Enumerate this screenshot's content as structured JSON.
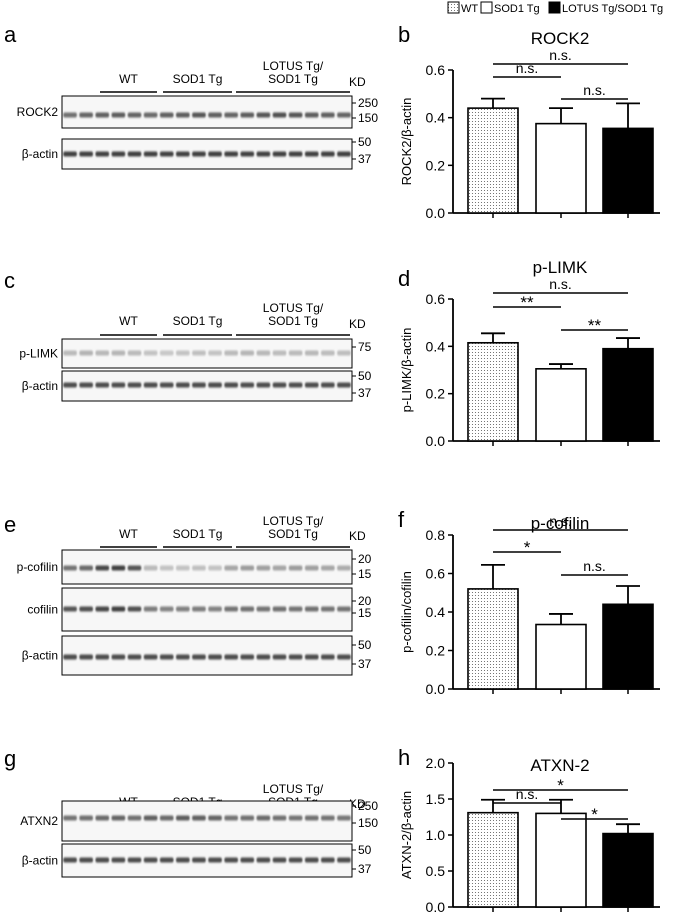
{
  "legend": {
    "items": [
      {
        "label": "WT",
        "style": "dotted"
      },
      {
        "label": "SOD1 Tg",
        "style": "white"
      },
      {
        "label": "LOTUS Tg/SOD1 Tg",
        "style": "black"
      }
    ]
  },
  "blots": [
    {
      "letter": "a",
      "groups": [
        {
          "label": "WT"
        },
        {
          "label": "SOD1 Tg"
        },
        {
          "label": "LOTUS Tg/",
          "label2": "SOD1 Tg"
        }
      ],
      "kd_label": "KD",
      "panels": [
        {
          "label": "ROCK2",
          "markers": [
            "250",
            "150"
          ],
          "intensity": [
            0.72,
            0.78,
            0.8,
            0.82,
            0.78,
            0.75,
            0.8,
            0.82,
            0.85,
            0.8,
            0.78,
            0.82,
            0.85,
            0.88,
            0.85,
            0.82,
            0.8,
            0.78
          ]
        },
        {
          "label": "β-actin",
          "markers": [
            "50",
            "37"
          ],
          "intensity": [
            0.95,
            0.95,
            0.95,
            0.95,
            0.95,
            0.95,
            0.95,
            0.95,
            0.95,
            0.95,
            0.95,
            0.95,
            0.95,
            0.95,
            0.95,
            0.95,
            0.95,
            0.95
          ]
        }
      ]
    },
    {
      "letter": "c",
      "groups": [
        {
          "label": "WT"
        },
        {
          "label": "SOD1 Tg"
        },
        {
          "label": "LOTUS Tg/",
          "label2": "SOD1 Tg"
        }
      ],
      "kd_label": "KD",
      "panels": [
        {
          "label": "p-LIMK",
          "markers": [
            "75"
          ],
          "intensity": [
            0.35,
            0.38,
            0.36,
            0.37,
            0.35,
            0.3,
            0.28,
            0.3,
            0.32,
            0.3,
            0.35,
            0.37,
            0.36,
            0.34,
            0.35,
            0.36,
            0.34,
            0.33
          ]
        },
        {
          "label": "β-actin",
          "markers": [
            "50",
            "37"
          ],
          "intensity": [
            0.9,
            0.9,
            0.9,
            0.9,
            0.9,
            0.9,
            0.9,
            0.9,
            0.9,
            0.9,
            0.9,
            0.9,
            0.9,
            0.9,
            0.9,
            0.9,
            0.9,
            0.9
          ]
        }
      ]
    },
    {
      "letter": "e",
      "groups": [
        {
          "label": "WT"
        },
        {
          "label": "SOD1 Tg"
        },
        {
          "label": "LOTUS Tg/",
          "label2": "SOD1 Tg"
        }
      ],
      "kd_label": "KD",
      "panels": [
        {
          "label": "p-cofilin",
          "markers": [
            "20",
            "15"
          ],
          "intensity": [
            0.7,
            0.75,
            0.92,
            0.95,
            0.85,
            0.35,
            0.3,
            0.3,
            0.32,
            0.3,
            0.45,
            0.5,
            0.48,
            0.45,
            0.5,
            0.48,
            0.45,
            0.42
          ]
        },
        {
          "label": "cofilin",
          "markers": [
            "20",
            "15"
          ],
          "intensity": [
            0.85,
            0.88,
            0.92,
            0.95,
            0.88,
            0.65,
            0.62,
            0.63,
            0.65,
            0.62,
            0.7,
            0.72,
            0.7,
            0.72,
            0.7,
            0.72,
            0.7,
            0.7
          ]
        },
        {
          "label": "β-actin",
          "markers": [
            "50",
            "37"
          ],
          "intensity": [
            0.9,
            0.9,
            0.9,
            0.9,
            0.9,
            0.9,
            0.9,
            0.9,
            0.9,
            0.9,
            0.9,
            0.9,
            0.9,
            0.9,
            0.9,
            0.9,
            0.9,
            0.9
          ]
        }
      ]
    },
    {
      "letter": "g",
      "groups": [
        {
          "label": "WT"
        },
        {
          "label": "SOD1 Tg"
        },
        {
          "label": "LOTUS Tg/",
          "label2": "SOD1 Tg"
        }
      ],
      "kd_label": "KD",
      "panels": [
        {
          "label": "ATXN2",
          "markers": [
            "250",
            "150"
          ],
          "intensity": [
            0.7,
            0.72,
            0.75,
            0.78,
            0.72,
            0.8,
            0.75,
            0.82,
            0.8,
            0.78,
            0.7,
            0.72,
            0.75,
            0.72,
            0.7,
            0.72,
            0.7,
            0.68
          ]
        },
        {
          "label": "β-actin",
          "markers": [
            "50",
            "37"
          ],
          "intensity": [
            0.9,
            0.9,
            0.9,
            0.9,
            0.9,
            0.9,
            0.9,
            0.9,
            0.9,
            0.9,
            0.9,
            0.9,
            0.9,
            0.9,
            0.9,
            0.9,
            0.9,
            0.9
          ]
        }
      ]
    }
  ],
  "chart_data": [
    {
      "letter": "b",
      "type": "bar",
      "title": "ROCK2",
      "ylabel": "ROCK2/β-actin",
      "categories": [
        "WT",
        "SOD1 Tg",
        "LOTUS Tg/SOD1 Tg"
      ],
      "values": [
        0.44,
        0.375,
        0.355
      ],
      "errors": [
        0.04,
        0.065,
        0.105
      ],
      "ylim": [
        0,
        0.6
      ],
      "yticks": [
        0.0,
        0.2,
        0.4,
        0.6
      ],
      "tick_decimals": 1,
      "comparisons": [
        {
          "from": 0,
          "to": 2,
          "label": "n.s."
        },
        {
          "from": 0,
          "to": 1,
          "label": "n.s."
        },
        {
          "from": 1,
          "to": 2,
          "label": "n.s."
        }
      ]
    },
    {
      "letter": "d",
      "type": "bar",
      "title": "p-LIMK",
      "ylabel": "p-LIMK/β-actin",
      "categories": [
        "WT",
        "SOD1 Tg",
        "LOTUS Tg/SOD1 Tg"
      ],
      "values": [
        0.415,
        0.305,
        0.39
      ],
      "errors": [
        0.04,
        0.02,
        0.045
      ],
      "ylim": [
        0,
        0.6
      ],
      "yticks": [
        0.0,
        0.2,
        0.4,
        0.6
      ],
      "tick_decimals": 1,
      "comparisons": [
        {
          "from": 0,
          "to": 2,
          "label": "n.s."
        },
        {
          "from": 0,
          "to": 1,
          "label": "**"
        },
        {
          "from": 1,
          "to": 2,
          "label": "**"
        }
      ]
    },
    {
      "letter": "f",
      "type": "bar",
      "title": "p-cofilin",
      "ylabel": "p-cofilin/cofilin",
      "categories": [
        "WT",
        "SOD1 Tg",
        "LOTUS Tg/SOD1 Tg"
      ],
      "values": [
        0.52,
        0.335,
        0.44
      ],
      "errors": [
        0.125,
        0.055,
        0.095
      ],
      "ylim": [
        0,
        0.8
      ],
      "yticks": [
        0.0,
        0.2,
        0.4,
        0.6,
        0.8
      ],
      "tick_decimals": 1,
      "comparisons": [
        {
          "from": 0,
          "to": 2,
          "label": "n.s."
        },
        {
          "from": 0,
          "to": 1,
          "label": "*"
        },
        {
          "from": 1,
          "to": 2,
          "label": "n.s."
        }
      ]
    },
    {
      "letter": "h",
      "type": "bar",
      "title": "ATXN-2",
      "ylabel": "ATXN-2/β-actin",
      "categories": [
        "WT",
        "SOD1 Tg",
        "LOTUS Tg/SOD1 Tg"
      ],
      "values": [
        1.31,
        1.3,
        1.02
      ],
      "errors": [
        0.18,
        0.19,
        0.13
      ],
      "ylim": [
        0,
        2.0
      ],
      "yticks": [
        0.0,
        0.5,
        1.0,
        1.5,
        2.0
      ],
      "tick_decimals": 1,
      "comparisons": [
        {
          "from": 0,
          "to": 2,
          "label": "*"
        },
        {
          "from": 0,
          "to": 1,
          "label": "n.s."
        },
        {
          "from": 1,
          "to": 2,
          "label": "*"
        }
      ]
    }
  ]
}
